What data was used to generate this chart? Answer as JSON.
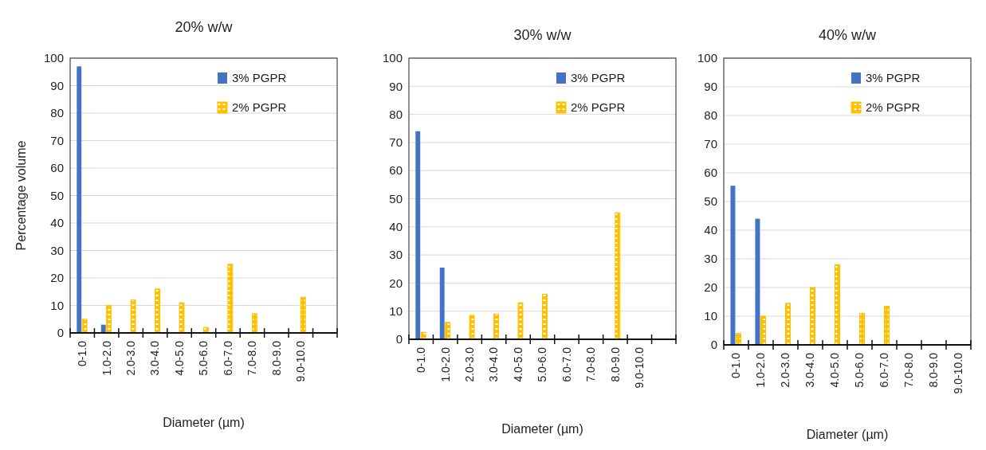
{
  "chart_data": [
    {
      "type": "bar",
      "title": "20% w/w",
      "xlabel": "Diameter (µm)",
      "ylabel": "Percentage volume",
      "categories": [
        "0-1.0",
        "1.0-2.0",
        "2.0-3.0",
        "3.0-4.0",
        "4.0-5.0",
        "5.0-6.0",
        "6.0-7.0",
        "7.0-8.0",
        "8.0-9.0",
        "9.0-10.0",
        null
      ],
      "series": [
        {
          "name": "3% PGPR",
          "color": "#4472c4",
          "values": [
            97,
            3,
            0,
            0,
            0,
            0,
            0,
            0,
            0,
            0,
            null
          ]
        },
        {
          "name": "2% PGPR",
          "color": "#ffc000",
          "values": [
            5,
            10,
            12,
            16,
            11,
            2,
            25,
            7,
            0,
            13,
            null
          ]
        }
      ],
      "ylim": [
        0,
        100
      ],
      "yticks": [
        0,
        10,
        20,
        30,
        40,
        50,
        60,
        70,
        80,
        90,
        100
      ],
      "grid": "y",
      "legend": "top right"
    },
    {
      "type": "bar",
      "title": "30% w/w",
      "xlabel": "Diameter (µm)",
      "categories": [
        "0-1.0",
        "1.0-2.0",
        "2.0-3.0",
        "3.0-4.0",
        "4.0-5.0",
        "5.0-6.0",
        "6.0-7.0",
        "7.0-8.0",
        "8.0-9.0",
        "9.0-10.0",
        null
      ],
      "series": [
        {
          "name": "3% PGPR",
          "color": "#4472c4",
          "values": [
            74,
            25.5,
            0,
            0,
            0,
            0,
            0,
            0,
            0,
            0,
            null
          ]
        },
        {
          "name": "2% PGPR",
          "color": "#ffc000",
          "values": [
            2.5,
            6,
            8.5,
            9,
            13,
            16,
            0,
            0,
            45,
            0,
            null
          ]
        }
      ],
      "ylim": [
        0,
        100
      ],
      "yticks": [
        0,
        10,
        20,
        30,
        40,
        50,
        60,
        70,
        80,
        90,
        100
      ],
      "grid": "y",
      "legend": "top right"
    },
    {
      "type": "bar",
      "title": "40% w/w",
      "xlabel": "Diameter (µm)",
      "categories": [
        "0-1.0",
        "1.0-2.0",
        "2.0-3.0",
        "3.0-4.0",
        "4.0-5.0",
        "5.0-6.0",
        "6.0-7.0",
        "7.0-8.0",
        "8.0-9.0",
        "9.0-10.0"
      ],
      "series": [
        {
          "name": "3% PGPR",
          "color": "#4472c4",
          "values": [
            55.5,
            44,
            0,
            0,
            0,
            0,
            0,
            0,
            0,
            0
          ]
        },
        {
          "name": "2% PGPR",
          "color": "#ffc000",
          "values": [
            4,
            10,
            14.5,
            20,
            28,
            11,
            13.5,
            0,
            0,
            0
          ]
        }
      ],
      "ylim": [
        0,
        100
      ],
      "yticks": [
        0,
        10,
        20,
        30,
        40,
        50,
        60,
        70,
        80,
        90,
        100
      ],
      "grid": "y",
      "legend": "top right"
    }
  ]
}
